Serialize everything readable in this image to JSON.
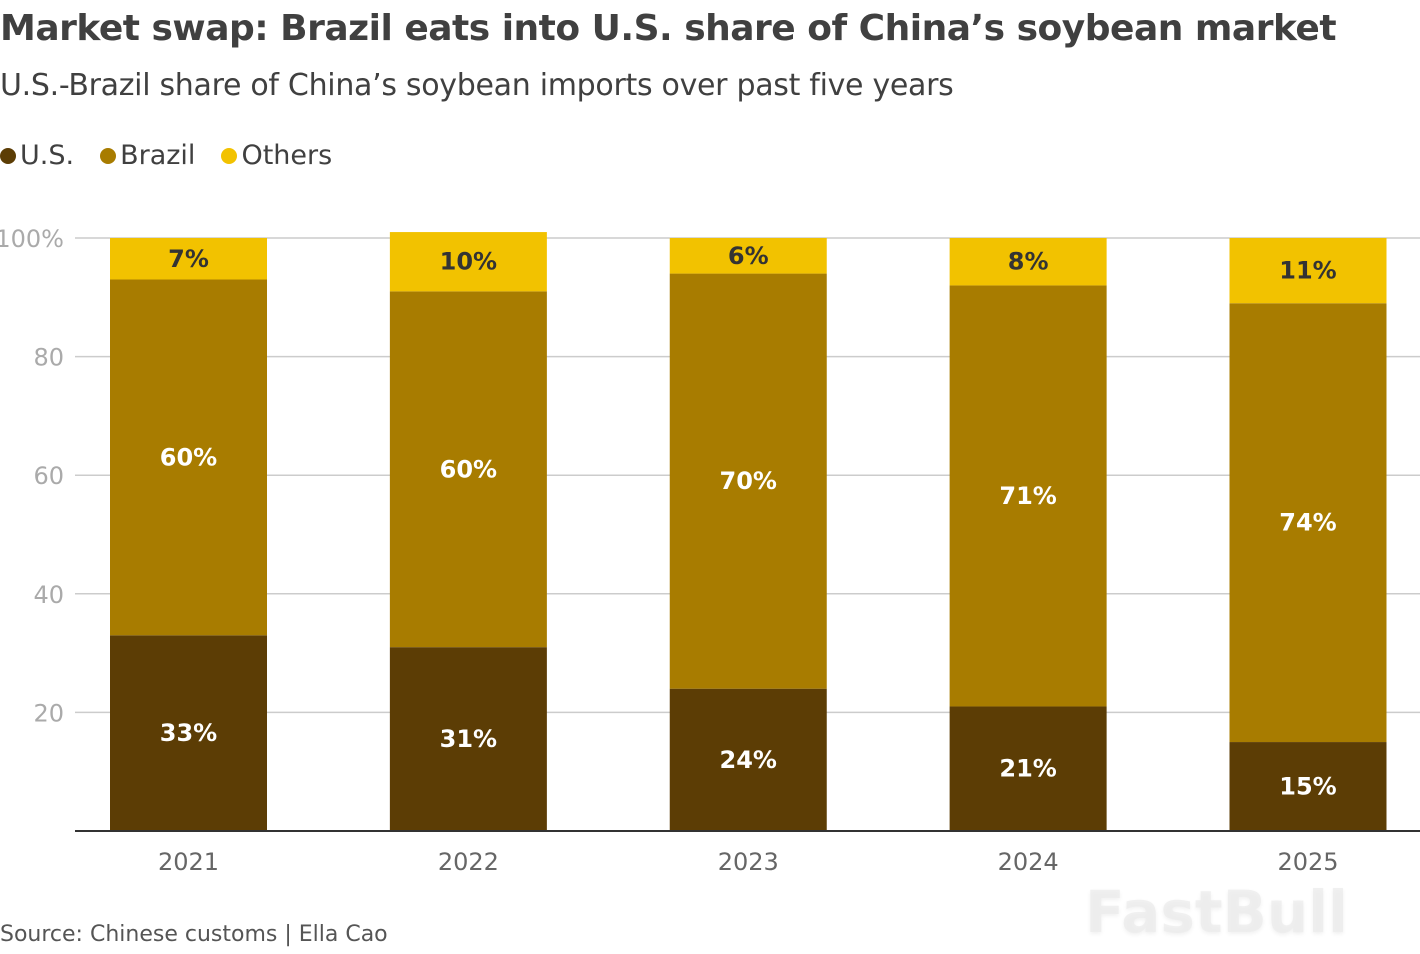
{
  "watermark": "FastBull",
  "chart_data": {
    "type": "bar",
    "stacked": true,
    "title": "Market swap: Brazil eats into U.S. share of China’s soybean market",
    "subtitle": "U.S.-Brazil share of China’s soybean imports over past five years",
    "xlabel": "",
    "ylabel": "",
    "ylim": [
      0,
      100
    ],
    "yticks": [
      "100%",
      "80",
      "60",
      "40",
      "20"
    ],
    "ytick_values": [
      100,
      80,
      60,
      40,
      20
    ],
    "categories": [
      "2021",
      "2022",
      "2023",
      "2024",
      "2025"
    ],
    "series": [
      {
        "name": "U.S.",
        "color": "#5c3d05",
        "values": [
          33,
          31,
          24,
          21,
          15
        ],
        "label_color": "#ffffff"
      },
      {
        "name": "Brazil",
        "color": "#a87c00",
        "values": [
          60,
          60,
          70,
          71,
          74
        ],
        "label_color": "#ffffff"
      },
      {
        "name": "Others",
        "color": "#f2c200",
        "values": [
          7,
          10,
          6,
          8,
          11
        ],
        "label_color": "#333333"
      }
    ],
    "legend": "top-left",
    "grid": true,
    "source": "Source: Chinese customs | Ella Cao"
  }
}
